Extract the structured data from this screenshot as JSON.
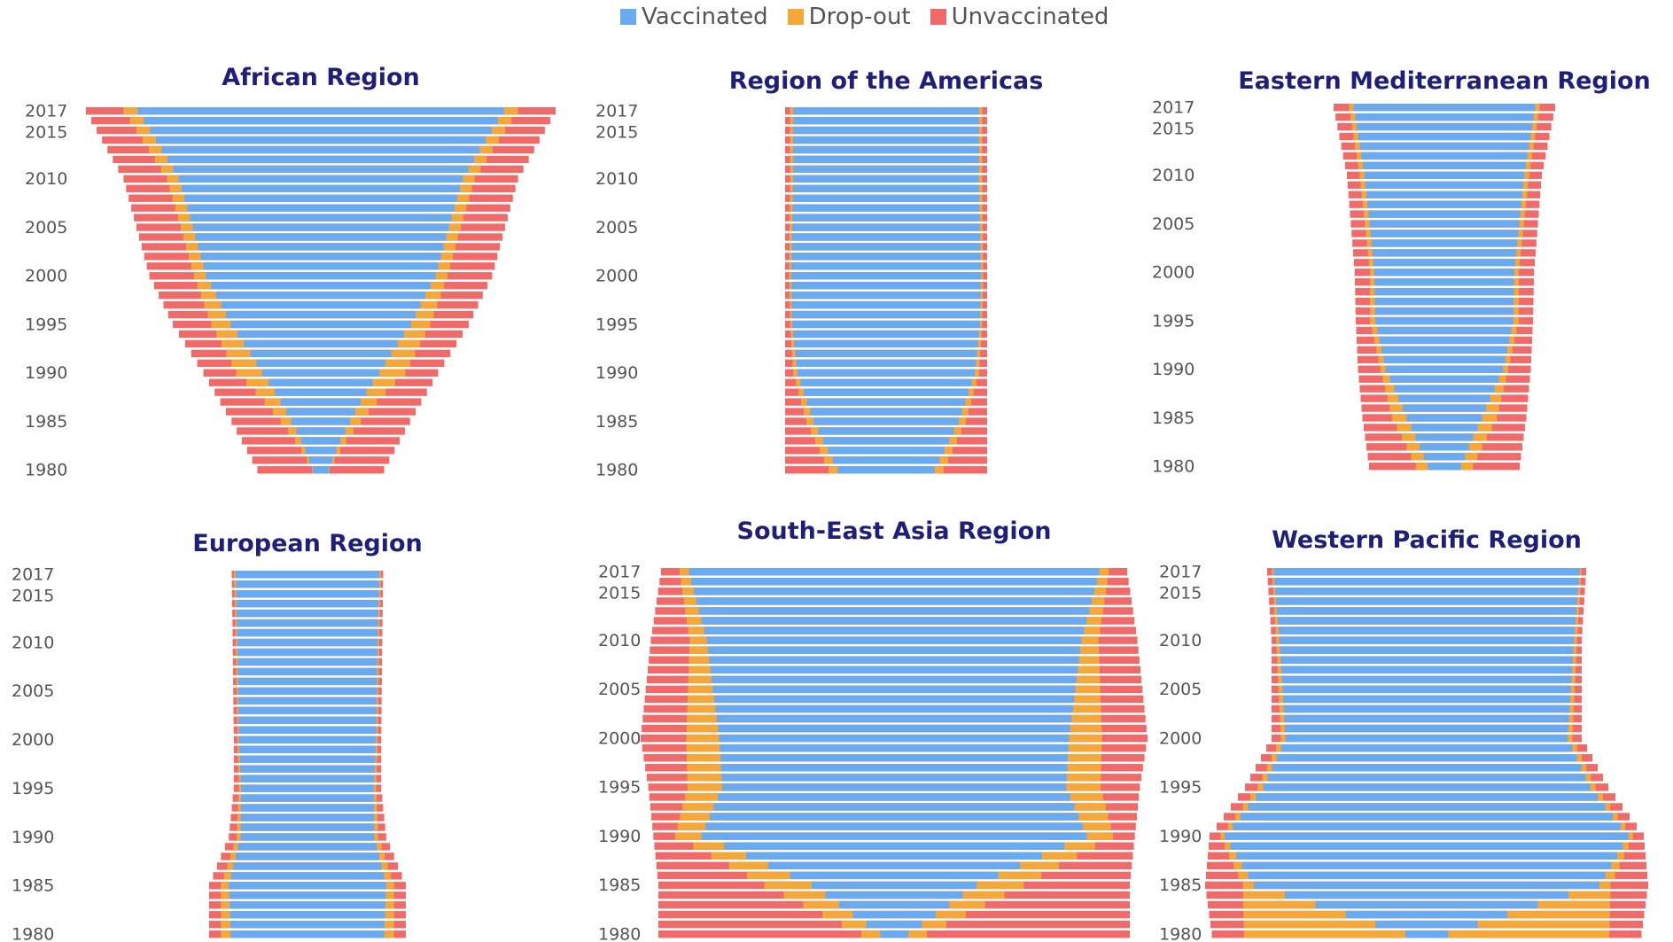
{
  "legend": {
    "vaccinated": "Vaccinated",
    "dropout": "Drop-out",
    "unvaccinated": "Unvaccinated"
  },
  "colors": {
    "vaccinated": "#6aaaf0",
    "dropout": "#f5a83a",
    "unvaccinated": "#f06a6a",
    "title": "#1f1f7a",
    "tick": "#555555"
  },
  "chart_data": [
    {
      "type": "bar",
      "title": "African Region",
      "y_tick_labels": [
        "2017",
        "2015",
        "2010",
        "2005",
        "2000",
        "1995",
        "1990",
        "1985",
        "1980"
      ],
      "series": [
        {
          "name": "Vaccinated",
          "values": [
            13,
            33,
            50,
            61,
            67,
            72,
            78
          ]
        },
        {
          "name": "Drop-out",
          "values": [
            1,
            12,
            22,
            13,
            7,
            6,
            6
          ]
        }
      ],
      "total_rel": [
        0.27,
        0.38,
        0.5,
        0.63,
        0.73,
        0.84,
        1.0
      ],
      "anchor_years": [
        1980,
        1985,
        1990,
        1995,
        2000,
        2010,
        2017
      ]
    },
    {
      "type": "bar",
      "title": "Region of the Americas",
      "y_tick_labels": [
        "2017",
        "2015",
        "2010",
        "2005",
        "2000",
        "1995",
        "1990",
        "1985",
        "1980"
      ],
      "series": [
        {
          "name": "Vaccinated",
          "values": [
            48,
            72,
            88,
            93,
            94,
            92,
            92
          ]
        },
        {
          "name": "Drop-out",
          "values": [
            9,
            7,
            4,
            2,
            2,
            3,
            3
          ]
        }
      ],
      "total_rel": [
        1.0,
        1.0,
        1.0,
        1.0,
        1.0,
        1.0,
        1.0
      ],
      "anchor_years": [
        1980,
        1985,
        1990,
        1995,
        2000,
        2010,
        2017
      ]
    },
    {
      "type": "bar",
      "title": "Eastern Mediterranean Region",
      "y_tick_labels": [
        "2017",
        "2015",
        "2010",
        "2005",
        "2000",
        "1995",
        "1990",
        "1985",
        "1980"
      ],
      "series": [
        {
          "name": "Vaccinated",
          "values": [
            22,
            46,
            68,
            78,
            78,
            82,
            82
          ]
        },
        {
          "name": "Drop-out",
          "values": [
            16,
            18,
            6,
            6,
            5,
            5,
            4
          ]
        }
      ],
      "total_rel": [
        0.68,
        0.74,
        0.78,
        0.8,
        0.81,
        0.88,
        1.0
      ],
      "anchor_years": [
        1980,
        1985,
        1990,
        1995,
        2000,
        2010,
        2017
      ]
    },
    {
      "type": "bar",
      "title": "European Region",
      "y_tick_labels": [
        "2017",
        "2015",
        "2010",
        "2005",
        "2000",
        "1995",
        "1990",
        "1985",
        "1980"
      ],
      "series": [
        {
          "name": "Vaccinated",
          "values": [
            78,
            80,
            85,
            90,
            93,
            94,
            95
          ]
        },
        {
          "name": "Drop-out",
          "values": [
            10,
            8,
            5,
            3,
            2,
            2,
            2
          ]
        }
      ],
      "total_rel": [
        1.0,
        1.0,
        0.8,
        0.75,
        0.75,
        0.76,
        0.77
      ],
      "anchor_years": [
        1980,
        1985,
        1990,
        1995,
        2000,
        2010,
        2017
      ]
    },
    {
      "type": "bar",
      "title": "South-East Asia Region",
      "y_tick_labels": [
        "2017",
        "2015",
        "2010",
        "2005",
        "2000",
        "1995",
        "1990",
        "1985",
        "1980"
      ],
      "series": [
        {
          "name": "Vaccinated",
          "values": [
            6,
            35,
            80,
            70,
            69,
            77,
            88
          ]
        },
        {
          "name": "Drop-out",
          "values": [
            8,
            20,
            11,
            14,
            13,
            7,
            4
          ]
        }
      ],
      "total_rel": [
        0.93,
        0.93,
        0.95,
        0.97,
        1.0,
        0.96,
        0.92
      ],
      "anchor_years": [
        1980,
        1985,
        1990,
        1995,
        2000,
        2010,
        2017
      ]
    },
    {
      "type": "bar",
      "title": "Western Pacific Region",
      "y_tick_labels": [
        "2017",
        "2015",
        "2010",
        "2005",
        "2000",
        "1995",
        "1990",
        "1985",
        "1980"
      ],
      "series": [
        {
          "name": "Vaccinated",
          "values": [
            10,
            78,
            93,
            90,
            91,
            95,
            96
          ]
        },
        {
          "name": "Drop-out",
          "values": [
            75,
            5,
            2,
            3,
            3,
            2,
            1
          ]
        }
      ],
      "total_rel": [
        0.97,
        1.0,
        0.98,
        0.82,
        0.7,
        0.7,
        0.72
      ],
      "anchor_years": [
        1980,
        1985,
        1990,
        1995,
        2000,
        2010,
        2017
      ]
    }
  ]
}
